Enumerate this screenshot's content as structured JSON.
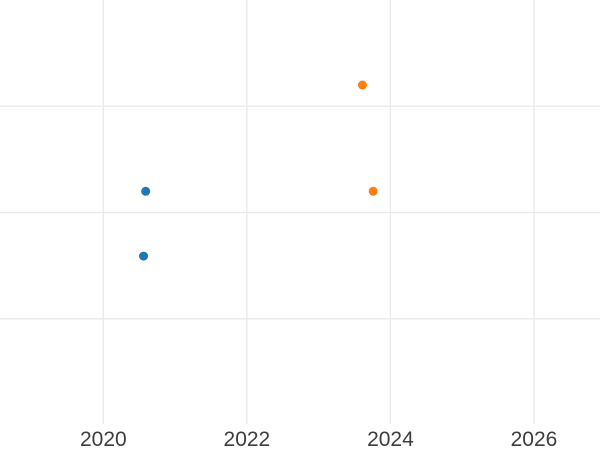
{
  "chart_data": {
    "type": "scatter",
    "title": "",
    "subtitle": "",
    "xlabel": "",
    "ylabel": "",
    "legend": "none",
    "grid": "on",
    "x_tick_labels": [
      "2020",
      "2022",
      "2024",
      "2026"
    ],
    "x_ticks": [
      2020,
      2022,
      2024,
      2026
    ],
    "x_domain": [
      2018.56,
      2026.92
    ],
    "y_domain": [
      -0.99,
      3.0
    ],
    "y_gridlines": [
      0,
      1,
      2
    ],
    "point_radius": 4.5,
    "series": [
      {
        "name": "series-blue",
        "color": "#1f77b4",
        "points": [
          {
            "x": 2020.56,
            "y": 0.59
          },
          {
            "x": 2020.59,
            "y": 1.2
          }
        ]
      },
      {
        "name": "series-orange",
        "color": "#ff7f0e",
        "points": [
          {
            "x": 2023.61,
            "y": 2.2
          },
          {
            "x": 2023.76,
            "y": 1.2
          }
        ]
      }
    ]
  },
  "style": {
    "background": "#ffffff",
    "grid_color": "#e9e9e9",
    "tick_label_color": "#3d3d3d",
    "tick_font_size": 21
  }
}
